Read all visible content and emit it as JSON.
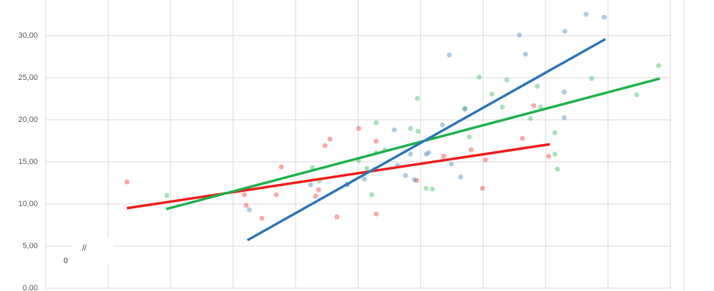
{
  "chart_data": {
    "type": "scatter",
    "xlim": [
      0,
      10
    ],
    "xticks": [
      0,
      1,
      2,
      3,
      4,
      5,
      6,
      7,
      8,
      9,
      10
    ],
    "ylim": [
      0,
      34.24
    ],
    "yticks": [
      {
        "value": 0,
        "label": "0,00"
      },
      {
        "value": 5,
        "label": "5,00"
      },
      {
        "value": 10,
        "label": "10,00"
      },
      {
        "value": 15,
        "label": "15,00"
      },
      {
        "value": 20,
        "label": "20,00"
      },
      {
        "value": 25,
        "label": "25,00"
      },
      {
        "value": 30,
        "label": "30,00"
      }
    ],
    "grid": true,
    "annotations": [
      "//",
      "0"
    ],
    "series": [
      {
        "color": "#ee1c1c",
        "x": [
          1.3,
          3.18,
          3.21,
          3.46,
          3.69,
          3.77,
          4.32,
          4.37,
          4.47,
          4.55,
          4.66,
          5.01,
          5.29,
          5.29,
          5.94,
          6.37,
          6.81,
          6.99,
          7.04,
          7.63,
          7.81,
          8.05
        ],
        "y": [
          12.63,
          11.1,
          9.83,
          8.31,
          11.1,
          14.41,
          10.93,
          11.69,
          16.95,
          17.71,
          8.47,
          18.98,
          17.46,
          8.81,
          12.8,
          15.68,
          16.44,
          11.86,
          15.25,
          17.8,
          21.69,
          15.68
        ],
        "trend": {
          "x": [
            1.3,
            8.07
          ],
          "y": [
            9.5,
            17.1
          ]
        }
      },
      {
        "color": "#1fb04b",
        "x": [
          1.94,
          4.27,
          4.38,
          4.82,
          5.01,
          5.14,
          5.22,
          5.29,
          5.29,
          5.43,
          5.84,
          5.95,
          5.96,
          6.09,
          6.19,
          6.71,
          6.78,
          6.94,
          7.14,
          7.31,
          7.38,
          7.76,
          7.87,
          7.92,
          8.15,
          8.15,
          8.19,
          8.74,
          9.46,
          9.81
        ],
        "y": [
          11.02,
          14.32,
          12.71,
          12.37,
          15.17,
          14.24,
          11.1,
          19.66,
          16.1,
          16.44,
          18.98,
          22.54,
          18.64,
          11.86,
          11.78,
          21.36,
          17.97,
          25.08,
          23.05,
          21.53,
          24.75,
          20.17,
          23.98,
          21.53,
          15.93,
          18.47,
          14.15,
          24.92,
          22.97,
          26.44
        ],
        "trend": {
          "x": [
            1.93,
            9.83
          ],
          "y": [
            9.4,
            24.9
          ]
        }
      },
      {
        "color": "#2e75b6",
        "x": [
          3.26,
          4.24,
          4.83,
          5.1,
          5.26,
          5.58,
          5.63,
          5.84,
          5.9,
          6.09,
          6.13,
          6.35,
          6.46,
          6.49,
          6.64,
          6.71,
          7.58,
          7.68,
          8.31,
          8.3,
          8.3,
          8.65,
          8.94,
          5.76
        ],
        "y": [
          9.32,
          12.29,
          12.29,
          12.97,
          14.07,
          18.81,
          14.58,
          15.93,
          12.88,
          15.93,
          16.1,
          19.41,
          27.71,
          14.75,
          13.22,
          21.27,
          30.08,
          27.8,
          30.51,
          23.31,
          20.25,
          32.54,
          32.2,
          13.39
        ],
        "trend": {
          "x": [
            3.23,
            8.96
          ],
          "y": [
            5.7,
            29.6
          ]
        }
      }
    ]
  }
}
